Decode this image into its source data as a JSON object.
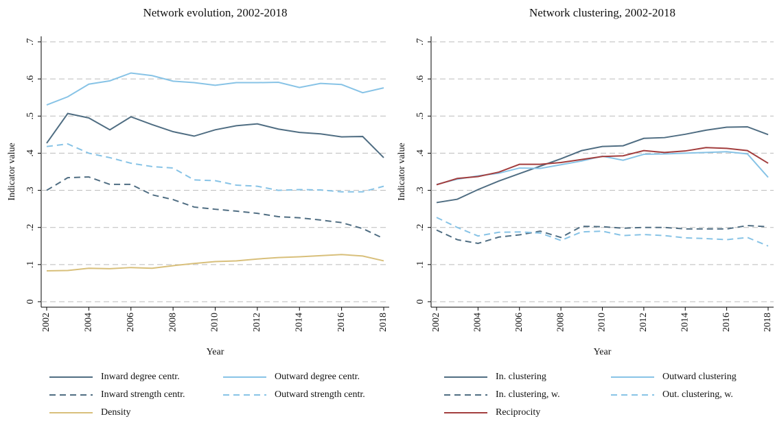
{
  "chart_data": [
    {
      "type": "line",
      "title": "Network evolution, 2002-2018",
      "xlabel": "Year",
      "ylabel": "Indicator value",
      "x": [
        2002,
        2003,
        2004,
        2005,
        2006,
        2007,
        2008,
        2009,
        2010,
        2011,
        2012,
        2013,
        2014,
        2015,
        2016,
        2017,
        2018
      ],
      "xlim": [
        2002,
        2018
      ],
      "xticks": [
        2002,
        2004,
        2006,
        2008,
        2010,
        2012,
        2014,
        2016,
        2018
      ],
      "ylim": [
        0,
        0.7
      ],
      "yticks": [
        0,
        {
          "value": 0.1,
          "label": ".1"
        },
        {
          "value": 0.2,
          "label": ".2"
        },
        {
          "value": 0.3,
          "label": ".3"
        },
        {
          "value": 0.4,
          "label": ".4"
        },
        {
          "value": 0.5,
          "label": ".5"
        },
        {
          "value": 0.6,
          "label": ".6"
        },
        {
          "value": 0.7,
          "label": ".7"
        }
      ],
      "grid": true,
      "legend": "bottom",
      "series": [
        {
          "name": "Inward degree centr.",
          "color": "#4f6d82",
          "dash": false,
          "values": [
            0.427,
            0.507,
            0.495,
            0.463,
            0.498,
            0.477,
            0.458,
            0.446,
            0.463,
            0.474,
            0.479,
            0.465,
            0.456,
            0.452,
            0.444,
            0.445,
            0.388
          ]
        },
        {
          "name": "Outward degree centr.",
          "color": "#87c3e6",
          "dash": false,
          "values": [
            0.53,
            0.552,
            0.586,
            0.595,
            0.616,
            0.609,
            0.594,
            0.59,
            0.583,
            0.59,
            0.59,
            0.591,
            0.577,
            0.588,
            0.585,
            0.563,
            0.576
          ]
        },
        {
          "name": "Inward strength centr.",
          "color": "#4f6d82",
          "dash": true,
          "values": [
            0.3,
            0.334,
            0.336,
            0.316,
            0.316,
            0.288,
            0.275,
            0.255,
            0.249,
            0.244,
            0.238,
            0.229,
            0.226,
            0.22,
            0.213,
            0.197,
            0.17
          ]
        },
        {
          "name": "Outward strength centr.",
          "color": "#87c3e6",
          "dash": true,
          "values": [
            0.418,
            0.425,
            0.4,
            0.388,
            0.373,
            0.364,
            0.36,
            0.328,
            0.326,
            0.314,
            0.311,
            0.3,
            0.302,
            0.301,
            0.296,
            0.296,
            0.311
          ]
        },
        {
          "name": "Density",
          "color": "#d8bf7a",
          "dash": false,
          "values": [
            0.083,
            0.084,
            0.09,
            0.089,
            0.092,
            0.09,
            0.097,
            0.103,
            0.108,
            0.11,
            0.115,
            0.119,
            0.121,
            0.124,
            0.127,
            0.123,
            0.11
          ]
        }
      ]
    },
    {
      "type": "line",
      "title": "Network clustering, 2002-2018",
      "xlabel": "Year",
      "ylabel": "Indicator value",
      "x": [
        2002,
        2003,
        2004,
        2005,
        2006,
        2007,
        2008,
        2009,
        2010,
        2011,
        2012,
        2013,
        2014,
        2015,
        2016,
        2017,
        2018
      ],
      "xlim": [
        2002,
        2018
      ],
      "xticks": [
        2002,
        2004,
        2006,
        2008,
        2010,
        2012,
        2014,
        2016,
        2018
      ],
      "ylim": [
        0,
        0.7
      ],
      "yticks": [
        0,
        {
          "value": 0.1,
          "label": ".1"
        },
        {
          "value": 0.2,
          "label": ".2"
        },
        {
          "value": 0.3,
          "label": ".3"
        },
        {
          "value": 0.4,
          "label": ".4"
        },
        {
          "value": 0.5,
          "label": ".5"
        },
        {
          "value": 0.6,
          "label": ".6"
        },
        {
          "value": 0.7,
          "label": ".7"
        }
      ],
      "grid": true,
      "legend": "bottom",
      "series": [
        {
          "name": "In. clustering",
          "color": "#4f6d82",
          "dash": false,
          "values": [
            0.267,
            0.276,
            0.302,
            0.325,
            0.345,
            0.365,
            0.385,
            0.407,
            0.418,
            0.42,
            0.44,
            0.442,
            0.451,
            0.462,
            0.47,
            0.471,
            0.45
          ]
        },
        {
          "name": "Outward clustering",
          "color": "#87c3e6",
          "dash": false,
          "values": [
            0.316,
            0.33,
            0.339,
            0.346,
            0.36,
            0.359,
            0.369,
            0.379,
            0.392,
            0.381,
            0.397,
            0.398,
            0.4,
            0.402,
            0.404,
            0.398,
            0.335
          ]
        },
        {
          "name": "In. clustering, w.",
          "color": "#4f6d82",
          "dash": true,
          "values": [
            0.193,
            0.167,
            0.157,
            0.174,
            0.18,
            0.19,
            0.173,
            0.203,
            0.202,
            0.198,
            0.2,
            0.2,
            0.196,
            0.196,
            0.196,
            0.205,
            0.202
          ]
        },
        {
          "name": "Out. clustering, w.",
          "color": "#87c3e6",
          "dash": true,
          "values": [
            0.227,
            0.2,
            0.177,
            0.187,
            0.188,
            0.185,
            0.165,
            0.188,
            0.19,
            0.178,
            0.181,
            0.178,
            0.172,
            0.17,
            0.167,
            0.173,
            0.15
          ]
        },
        {
          "name": "Reciprocity",
          "color": "#a23d3d",
          "dash": false,
          "values": [
            0.315,
            0.332,
            0.337,
            0.349,
            0.37,
            0.37,
            0.375,
            0.383,
            0.391,
            0.393,
            0.407,
            0.402,
            0.406,
            0.415,
            0.413,
            0.407,
            0.373
          ]
        }
      ]
    }
  ]
}
